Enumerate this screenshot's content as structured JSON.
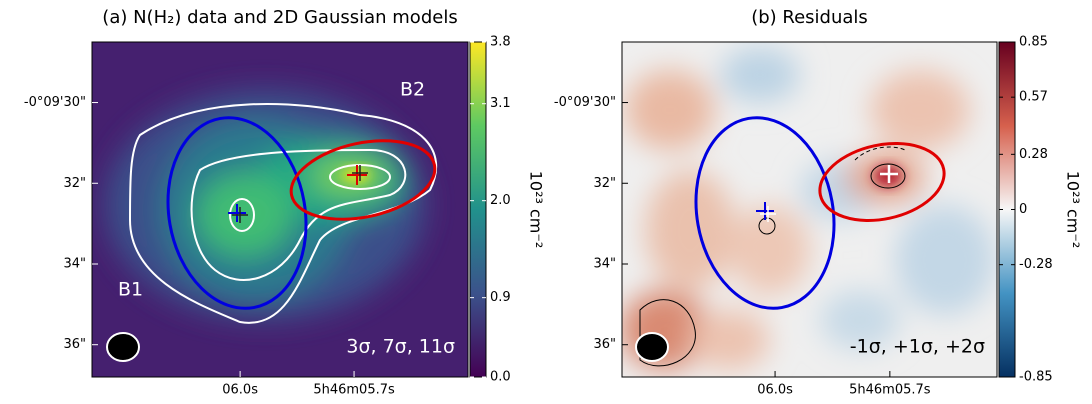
{
  "chart_data": [
    {
      "type": "heatmap",
      "title": "(a) N(H₂) data and 2D Gaussian models",
      "xlim": [
        6.39,
        5.4
      ],
      "xticks": [
        {
          "value": 6.0,
          "label": "06.0s"
        },
        {
          "value": 5.7,
          "label": "5h46m05.7s"
        }
      ],
      "ylim": [
        36.8,
        28.5
      ],
      "yticks": [
        {
          "value": 30,
          "label": "-0°09'30\""
        },
        {
          "value": 32,
          "label": "32\""
        },
        {
          "value": 34,
          "label": "34\""
        },
        {
          "value": 36,
          "label": "36\""
        }
      ],
      "colorbar": {
        "lim": [
          0,
          3.8
        ],
        "ticks": [
          {
            "value": 0,
            "label": "0.0"
          },
          0.9,
          {
            "value": 2,
            "label": "2.0"
          },
          3.1,
          3.8
        ],
        "label": "10²³ cm⁻²",
        "colors": [
          "#440154",
          "#3b528b",
          "#21918c",
          "#5ec962",
          "#fde725"
        ]
      },
      "annotations": [
        "B1",
        "B2",
        "3σ, 7σ, 11σ"
      ]
    },
    {
      "type": "heatmap",
      "title": "(b) Residuals",
      "xlim": [
        6.4,
        5.42
      ],
      "xticks": [
        {
          "value": 6.0,
          "label": "06.0s"
        },
        {
          "value": 5.7,
          "label": "5h46m05.7s"
        }
      ],
      "ylim": [
        36.8,
        28.5
      ],
      "yticks": [
        {
          "value": 30,
          "label": "-0°09'30\""
        },
        {
          "value": 32,
          "label": "32\""
        },
        {
          "value": 34,
          "label": "34\""
        },
        {
          "value": 36,
          "label": "36\""
        }
      ],
      "colorbar": {
        "lim": [
          -0.85,
          0.85
        ],
        "ticks": [
          -0.85,
          -0.28,
          0,
          0.28,
          0.57,
          0.85
        ],
        "label": "10²³ cm⁻²",
        "colors": [
          "#053061",
          "#4393c3",
          "#f7f7f7",
          "#d6604d",
          "#67001f"
        ]
      },
      "annotations": [
        "-1σ, +1σ, +2σ"
      ]
    }
  ]
}
